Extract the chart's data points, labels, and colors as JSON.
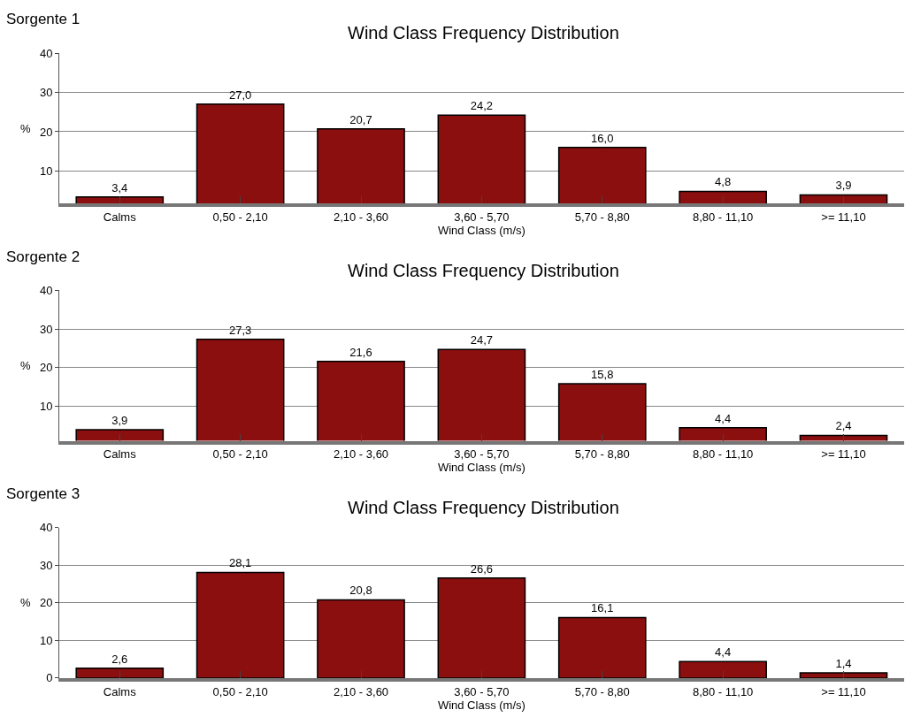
{
  "chart_data": [
    {
      "type": "bar",
      "title": "Wind Class Frequency Distribution",
      "xlabel": "Wind Class (m/s)",
      "ylabel": "%",
      "annotations": [
        "Sorgente 1"
      ],
      "categories": [
        "Calms",
        "0,50 - 2,10",
        "2,10 - 3,60",
        "3,60 - 5,70",
        "5,70 - 8,80",
        "8,80 - 11,10",
        ">= 11,10"
      ],
      "values": [
        3.4,
        27.0,
        20.7,
        24.2,
        16.0,
        4.8,
        3.9
      ],
      "value_labels": [
        "3,4",
        "27,0",
        "20,7",
        "24,2",
        "16,0",
        "4,8",
        "3,9"
      ],
      "color": "#8b0f0f",
      "ylim": [
        1.7,
        40
      ],
      "yticks": [
        10,
        20,
        30,
        40
      ],
      "grid": "y"
    },
    {
      "type": "bar",
      "title": "Wind Class Frequency Distribution",
      "xlabel": "Wind Class (m/s)",
      "ylabel": "%",
      "annotations": [
        "Sorgente 2"
      ],
      "categories": [
        "Calms",
        "0,50 - 2,10",
        "2,10 - 3,60",
        "3,60 - 5,70",
        "5,70 - 8,80",
        "8,80 - 11,10",
        ">= 11,10"
      ],
      "values": [
        3.9,
        27.3,
        21.6,
        24.7,
        15.8,
        4.4,
        2.4
      ],
      "value_labels": [
        "3,9",
        "27,3",
        "21,6",
        "24,7",
        "15,8",
        "4,4",
        "2,4"
      ],
      "color": "#8b0f0f",
      "ylim": [
        1,
        40
      ],
      "yticks": [
        10,
        20,
        30,
        40
      ],
      "grid": "y"
    },
    {
      "type": "bar",
      "title": "Wind Class Frequency Distribution",
      "xlabel": "Wind Class (m/s)",
      "ylabel": "%",
      "annotations": [
        "Sorgente 3"
      ],
      "categories": [
        "Calms",
        "0,50 - 2,10",
        "2,10 - 3,60",
        "3,60 - 5,70",
        "5,70 - 8,80",
        "8,80 - 11,10",
        ">= 11,10"
      ],
      "values": [
        2.6,
        28.1,
        20.8,
        26.6,
        16.1,
        4.4,
        1.4
      ],
      "value_labels": [
        "2,6",
        "28,1",
        "20,8",
        "26,6",
        "16,1",
        "4,4",
        "1,4"
      ],
      "color": "#8b0f0f",
      "ylim": [
        0,
        40
      ],
      "yticks": [
        0,
        10,
        20,
        30,
        40
      ],
      "grid": "y"
    }
  ]
}
